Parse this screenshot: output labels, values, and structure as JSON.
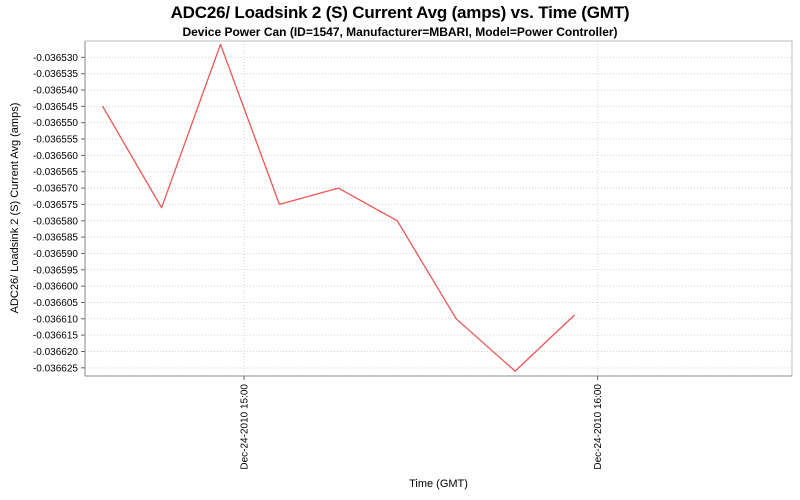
{
  "chart": {
    "title": "ADC26/ Loadsink 2 (S) Current Avg (amps) vs. Time (GMT)",
    "subtitle": "Device Power Can (ID=1547, Manufacturer=MBARI, Model=Power Controller)",
    "x_axis_label": "Time (GMT)",
    "y_axis_label": "ADC26/ Loadsink 2 (S) Current Avg (amps)"
  },
  "chart_data": {
    "type": "line",
    "title": "ADC26/ Loadsink 2 (S) Current Avg (amps) vs. Time (GMT)",
    "subtitle": "Device Power Can (ID=1547, Manufacturer=MBARI, Model=Power Controller)",
    "xlabel": "Time (GMT)",
    "ylabel": "ADC26/ Loadsink 2 (S) Current Avg (amps)",
    "series": [
      {
        "name": "ADC26/ Loadsink 2 (S) Current Avg (amps)",
        "points": [
          {
            "time": "Dec-24-2010 14:36",
            "minute": 3,
            "value": -0.036545
          },
          {
            "time": "Dec-24-2010 14:46",
            "minute": 13,
            "value": -0.036576
          },
          {
            "time": "Dec-24-2010 14:56",
            "minute": 23,
            "value": -0.036526
          },
          {
            "time": "Dec-24-2010 15:06",
            "minute": 33,
            "value": -0.036575
          },
          {
            "time": "Dec-24-2010 15:16",
            "minute": 43,
            "value": -0.03657
          },
          {
            "time": "Dec-24-2010 15:26",
            "minute": 53,
            "value": -0.03658
          },
          {
            "time": "Dec-24-2010 15:36",
            "minute": 63,
            "value": -0.03661
          },
          {
            "time": "Dec-24-2010 15:46",
            "minute": 73,
            "value": -0.036626
          },
          {
            "time": "Dec-24-2010 15:56",
            "minute": 83,
            "value": -0.036609
          }
        ]
      }
    ],
    "x_domain_minutes": [
      0,
      120
    ],
    "x_ticks": [
      {
        "label": "Dec-24-2010 15:00",
        "minute": 27
      },
      {
        "label": "Dec-24-2010 16:00",
        "minute": 87
      }
    ],
    "y_ticks": [
      -0.03653,
      -0.036535,
      -0.03654,
      -0.036545,
      -0.03655,
      -0.036555,
      -0.03656,
      -0.036565,
      -0.03657,
      -0.036575,
      -0.03658,
      -0.036585,
      -0.03659,
      -0.036595,
      -0.0366,
      -0.036605,
      -0.03661,
      -0.036615,
      -0.03662,
      -0.036625
    ],
    "y_tick_decimals": 6,
    "ylim": [
      -0.0366275,
      -0.036525
    ],
    "grid": "dotted",
    "legend": "none",
    "colors": {
      "line": "#ee5555",
      "grid": "#d4d4d4",
      "frame": "#bbbbbb",
      "axis": "#888888",
      "tick": "#666666",
      "text": "#000000",
      "background": "#ffffff"
    }
  }
}
